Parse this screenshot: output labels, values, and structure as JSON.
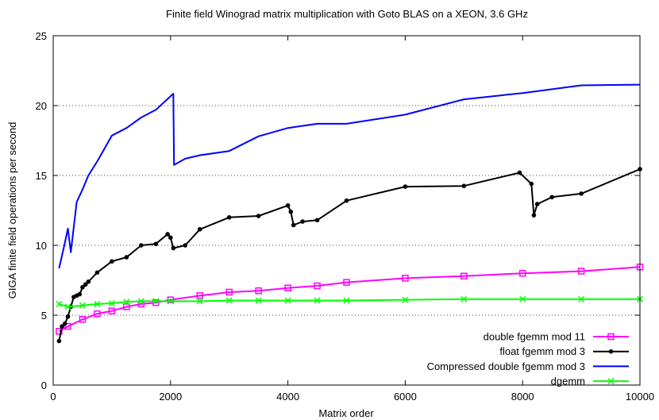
{
  "chart_data": {
    "type": "line",
    "title": "Finite field Winograd matrix multiplication with Goto BLAS on a XEON, 3.6 GHz",
    "xlabel": "Matrix order",
    "ylabel": "GIGA finite field operations per second",
    "xlim": [
      0,
      10000
    ],
    "ylim": [
      0,
      25
    ],
    "x_ticks": [
      "0",
      "2000",
      "4000",
      "6000",
      "8000",
      "10000"
    ],
    "y_ticks": [
      "0",
      "5",
      "10",
      "15",
      "20",
      "25"
    ],
    "grid": "dotted horizontal lines at y ticks",
    "legend_position": "bottom-right",
    "series": [
      {
        "name": "double fgemm mod 11",
        "color": "#ff00ff",
        "marker": "square",
        "points": [
          [
            100,
            3.85
          ],
          [
            250,
            4.2
          ],
          [
            500,
            4.7
          ],
          [
            750,
            5.1
          ],
          [
            1000,
            5.3
          ],
          [
            1250,
            5.6
          ],
          [
            1500,
            5.8
          ],
          [
            1750,
            5.9
          ],
          [
            2000,
            6.1
          ],
          [
            2500,
            6.4
          ],
          [
            3000,
            6.65
          ],
          [
            3500,
            6.75
          ],
          [
            4000,
            6.95
          ],
          [
            4500,
            7.1
          ],
          [
            5000,
            7.35
          ],
          [
            6000,
            7.65
          ],
          [
            7000,
            7.8
          ],
          [
            8000,
            8.0
          ],
          [
            9000,
            8.15
          ],
          [
            10000,
            8.45
          ]
        ]
      },
      {
        "name": "float fgemm mod 3",
        "color": "#000000",
        "marker": "circle",
        "points": [
          [
            100,
            3.15
          ],
          [
            150,
            4.2
          ],
          [
            200,
            4.4
          ],
          [
            250,
            4.9
          ],
          [
            300,
            5.6
          ],
          [
            350,
            6.3
          ],
          [
            400,
            6.4
          ],
          [
            450,
            6.5
          ],
          [
            500,
            7.0
          ],
          [
            550,
            7.2
          ],
          [
            600,
            7.4
          ],
          [
            750,
            8.05
          ],
          [
            1000,
            8.85
          ],
          [
            1250,
            9.15
          ],
          [
            1500,
            10.0
          ],
          [
            1750,
            10.1
          ],
          [
            1950,
            10.8
          ],
          [
            2000,
            10.55
          ],
          [
            2048,
            9.8
          ],
          [
            2250,
            10.0
          ],
          [
            2500,
            11.15
          ],
          [
            3000,
            12.0
          ],
          [
            3500,
            12.1
          ],
          [
            4000,
            12.85
          ],
          [
            4050,
            12.4
          ],
          [
            4096,
            11.45
          ],
          [
            4250,
            11.7
          ],
          [
            4500,
            11.8
          ],
          [
            5000,
            13.2
          ],
          [
            6000,
            14.2
          ],
          [
            7000,
            14.25
          ],
          [
            7950,
            15.2
          ],
          [
            8150,
            14.4
          ],
          [
            8192,
            12.15
          ],
          [
            8250,
            12.95
          ],
          [
            8500,
            13.45
          ],
          [
            9000,
            13.7
          ],
          [
            10000,
            15.45
          ]
        ]
      },
      {
        "name": "Compressed double fgemm mod 3",
        "color": "#0000ff",
        "marker": "none",
        "points": [
          [
            100,
            8.35
          ],
          [
            200,
            10.2
          ],
          [
            250,
            11.2
          ],
          [
            300,
            9.5
          ],
          [
            400,
            13.1
          ],
          [
            500,
            14.0
          ],
          [
            600,
            15.0
          ],
          [
            750,
            16.0
          ],
          [
            1000,
            17.85
          ],
          [
            1250,
            18.4
          ],
          [
            1500,
            19.15
          ],
          [
            1750,
            19.7
          ],
          [
            2048,
            20.85
          ],
          [
            2060,
            15.75
          ],
          [
            2250,
            16.2
          ],
          [
            2500,
            16.45
          ],
          [
            3000,
            16.75
          ],
          [
            3500,
            17.8
          ],
          [
            4000,
            18.4
          ],
          [
            4500,
            18.7
          ],
          [
            5000,
            18.7
          ],
          [
            6000,
            19.35
          ],
          [
            7000,
            20.45
          ],
          [
            8000,
            20.9
          ],
          [
            9000,
            21.45
          ],
          [
            10000,
            21.5
          ]
        ]
      },
      {
        "name": "dgemm",
        "color": "#00ff00",
        "marker": "x",
        "points": [
          [
            100,
            5.8
          ],
          [
            250,
            5.6
          ],
          [
            500,
            5.7
          ],
          [
            750,
            5.8
          ],
          [
            1000,
            5.85
          ],
          [
            1250,
            5.95
          ],
          [
            1500,
            6.0
          ],
          [
            1750,
            6.0
          ],
          [
            2000,
            6.0
          ],
          [
            2500,
            6.0
          ],
          [
            3000,
            6.05
          ],
          [
            3500,
            6.05
          ],
          [
            4000,
            6.05
          ],
          [
            4500,
            6.05
          ],
          [
            5000,
            6.05
          ],
          [
            6000,
            6.1
          ],
          [
            7000,
            6.15
          ],
          [
            8000,
            6.15
          ],
          [
            9000,
            6.15
          ],
          [
            10000,
            6.15
          ]
        ]
      }
    ]
  }
}
